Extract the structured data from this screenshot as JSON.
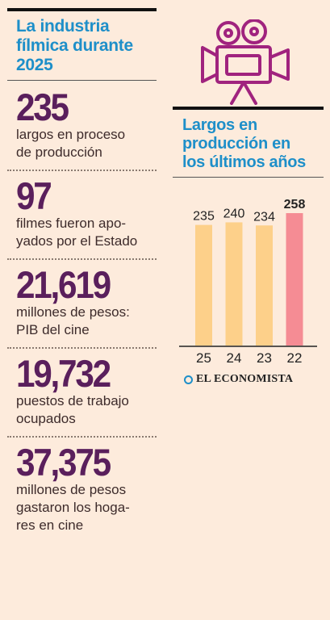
{
  "left": {
    "title_lines": [
      "La industria",
      "fílmica durante",
      "2025"
    ],
    "stats": [
      {
        "value": "235",
        "label_lines": [
          "largos en proceso",
          "de producción"
        ]
      },
      {
        "value": "97",
        "label_lines": [
          "filmes fueron apo-",
          "yados por el Estado"
        ]
      },
      {
        "value": "21,619",
        "label_lines": [
          "millones de pesos:",
          "PIB del cine"
        ]
      },
      {
        "value": "19,732",
        "label_lines": [
          "puestos de trabajo",
          "ocupados"
        ]
      },
      {
        "value": "37,375",
        "label_lines": [
          "millones de pesos",
          "gastaron los hoga-",
          "res en cine"
        ]
      }
    ]
  },
  "camera_icon": "film-camera-icon",
  "right": {
    "title_lines": [
      "Largos en",
      "producción en",
      "los últimos años"
    ]
  },
  "chart_data": {
    "type": "bar",
    "categories": [
      "25",
      "24",
      "23",
      "22"
    ],
    "values": [
      235,
      240,
      234,
      258
    ],
    "data_labels": [
      "235",
      "240",
      "234",
      "258"
    ],
    "highlight_index": 3,
    "ylim": [
      0,
      258
    ],
    "grid": false,
    "colors": {
      "normal": "#fdd08a",
      "highlight": "#f58c94"
    }
  },
  "brand": {
    "text": "EL ECONOMISTA"
  },
  "colors": {
    "background": "#fdebdc",
    "accent": "#1e8fc9",
    "stat": "#5a1f5c",
    "camera": "#a0237e"
  }
}
